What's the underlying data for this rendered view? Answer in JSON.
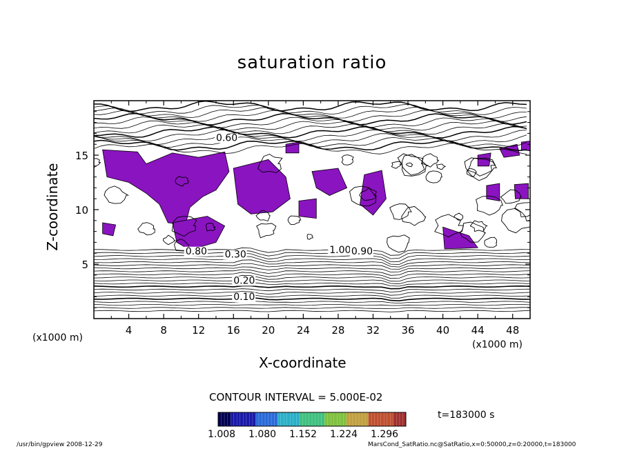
{
  "chart_data": {
    "type": "contour",
    "title": "saturation ratio",
    "xlabel": "X-coordinate",
    "ylabel": "Z-coordinate",
    "x_unit_left": "(x1000 m)",
    "x_unit_right": "(x1000 m)",
    "xticks": [
      "4",
      "8",
      "12",
      "16",
      "20",
      "24",
      "28",
      "32",
      "36",
      "40",
      "44",
      "48"
    ],
    "xtick_values": [
      4,
      8,
      12,
      16,
      20,
      24,
      28,
      32,
      36,
      40,
      44,
      48
    ],
    "yticks": [
      "5",
      "10",
      "15"
    ],
    "ytick_values": [
      5,
      10,
      15
    ],
    "xlim": [
      0,
      50
    ],
    "ylim": [
      0,
      20
    ],
    "contour_interval": "CONTOUR INTERVAL = 5.000E-02",
    "time_label": "t=183000 s",
    "contour_labels": [
      "0.10",
      "0.20",
      "0.30",
      "0.80",
      "1.00",
      "0.90",
      "0.60"
    ],
    "colorbar": {
      "ticks": [
        "1.008",
        "1.080",
        "1.152",
        "1.224",
        "1.296"
      ],
      "tick_values": [
        1.008,
        1.08,
        1.152,
        1.224,
        1.296
      ],
      "range": [
        1.0,
        1.3
      ]
    },
    "fill_color": "#8a14c0",
    "fill_threshold": 1.0
  },
  "footer": {
    "left": "/usr/bin/gpview   2008-12-29",
    "right": "MarsCond_SatRatio.nc@SatRatio,x=0:50000,z=0:20000,t=183000"
  }
}
